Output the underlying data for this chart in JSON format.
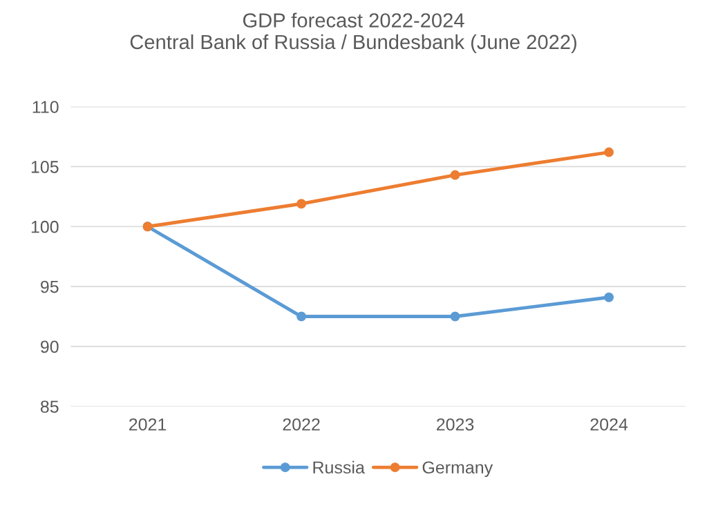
{
  "chart_data": {
    "type": "line",
    "title": "GDP forecast 2022-2024\nCentral Bank of Russia / Bundesbank (June 2022)",
    "categories": [
      "2021",
      "2022",
      "2023",
      "2024"
    ],
    "series": [
      {
        "name": "Russia",
        "color": "#5b9bd5",
        "values": [
          100,
          92.5,
          92.5,
          94.1
        ]
      },
      {
        "name": "Germany",
        "color": "#ed7d31",
        "values": [
          100,
          101.9,
          104.3,
          106.2
        ]
      }
    ],
    "ylim": [
      85,
      110
    ],
    "yticks": [
      85,
      90,
      95,
      100,
      105,
      110
    ],
    "grid": "y",
    "legend": "bottom",
    "marker": "circle",
    "line_style": "solid"
  }
}
